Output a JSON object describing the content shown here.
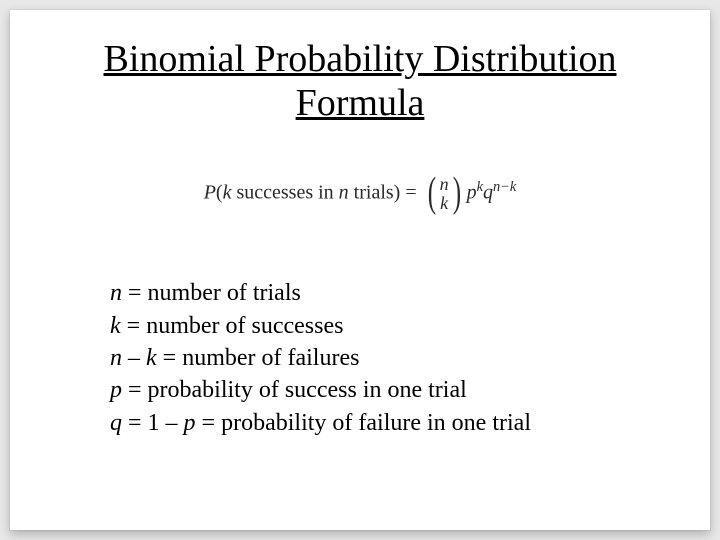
{
  "slide": {
    "title": "Binomial Probability Distribution Formula",
    "formula": {
      "lhs_P": "P",
      "lhs_open": "(",
      "lhs_k": "k",
      "lhs_text1": " successes in ",
      "lhs_n": "n",
      "lhs_text2": " trials",
      "lhs_close": ")",
      "equals": " = ",
      "binom_top": "n",
      "binom_bottom": "k",
      "p_base": "p",
      "p_exp": "k",
      "q_base": "q",
      "q_exp": "n−k"
    },
    "definitions": {
      "line1_var": "n",
      "line1_rest": " = number of trials",
      "line2_var": "k",
      "line2_rest": " = number of successes",
      "line3_var1": "n",
      "line3_mid": " – ",
      "line3_var2": "k",
      "line3_rest": " = number of failures",
      "line4_var": "p",
      "line4_rest": " = probability of success in one trial",
      "line5_var1": "q",
      "line5_mid": " = 1 – ",
      "line5_var2": "p",
      "line5_rest": " = probability of failure in one trial"
    },
    "colors": {
      "background": "#e8e8e8",
      "slide_bg": "#ffffff",
      "text": "#000000",
      "formula_text": "#2a2a2a"
    },
    "typography": {
      "title_fontsize": 38,
      "formula_fontsize": 20,
      "defs_fontsize": 24,
      "font_family": "Times New Roman"
    }
  }
}
